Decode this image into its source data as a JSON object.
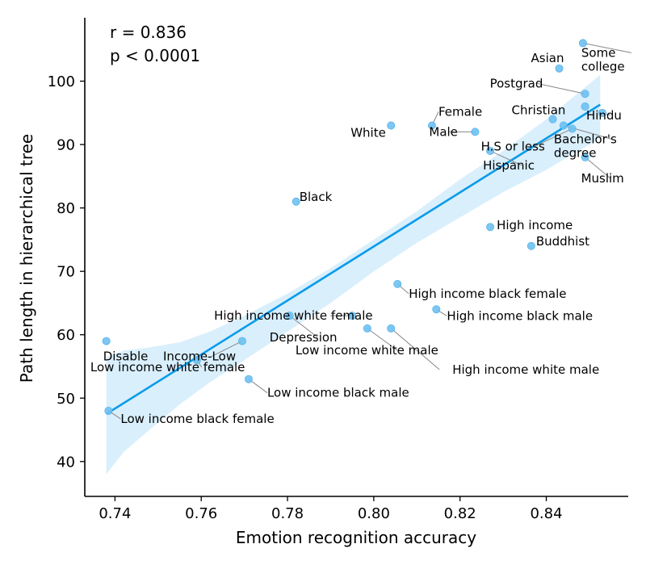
{
  "chart_data": {
    "type": "scatter",
    "xlabel": "Emotion recognition accuracy",
    "ylabel": "Path length in hierarchical tree",
    "xlim": [
      0.733,
      0.859
    ],
    "ylim": [
      34.5,
      110
    ],
    "xticks": [
      0.74,
      0.76,
      0.78,
      0.8,
      0.82,
      0.84
    ],
    "xtick_labels": [
      "0.74",
      "0.76",
      "0.78",
      "0.80",
      "0.82",
      "0.84"
    ],
    "yticks": [
      40,
      50,
      60,
      70,
      80,
      90,
      100
    ],
    "ytick_labels": [
      "40",
      "50",
      "60",
      "70",
      "80",
      "90",
      "100"
    ],
    "annotations": {
      "r": "r = 0.836",
      "p": "p < 0.0001"
    },
    "colors": {
      "points": "#6ec1f2",
      "line": "#0a9bea",
      "band": "#d9effc"
    },
    "regression": {
      "x0": 0.738,
      "y0": 47.5,
      "x1": 0.8525,
      "y1": 96.3
    },
    "ci_band": [
      [
        0.738,
        38.0,
        56.5
      ],
      [
        0.742,
        41.5,
        57.5
      ],
      [
        0.748,
        45.0,
        58.0
      ],
      [
        0.755,
        49.0,
        58.8
      ],
      [
        0.762,
        52.5,
        60.5
      ],
      [
        0.77,
        56.0,
        63.0
      ],
      [
        0.78,
        60.5,
        66.5
      ],
      [
        0.79,
        65.0,
        70.5
      ],
      [
        0.8,
        70.0,
        75.0
      ],
      [
        0.81,
        74.5,
        79.5
      ],
      [
        0.82,
        78.5,
        84.5
      ],
      [
        0.83,
        82.5,
        89.0
      ],
      [
        0.84,
        86.0,
        94.0
      ],
      [
        0.8525,
        91.0,
        101.0
      ]
    ],
    "points": [
      {
        "label": "Asian",
        "x": 0.843,
        "y": 102.0
      },
      {
        "label": "Some\ncollege",
        "x": 0.8485,
        "y": 106.0
      },
      {
        "label": "Postgrad",
        "x": 0.849,
        "y": 98.0
      },
      {
        "label": "Christian",
        "x": 0.8415,
        "y": 94.0
      },
      {
        "label": "Hindu",
        "x": 0.853,
        "y": 95.0
      },
      {
        "label": "Bachelor's\ndegree",
        "x": 0.844,
        "y": 93.0
      },
      {
        "label": "",
        "x": 0.849,
        "y": 96.0
      },
      {
        "label": "Muslim",
        "x": 0.849,
        "y": 88.0
      },
      {
        "label": "Female",
        "x": 0.8135,
        "y": 93.0
      },
      {
        "label": "Male",
        "x": 0.8235,
        "y": 92.0
      },
      {
        "label": "H.S or less",
        "x": 0.846,
        "y": 92.5
      },
      {
        "label": "Hispanic",
        "x": 0.827,
        "y": 89.0
      },
      {
        "label": "White",
        "x": 0.804,
        "y": 93.0
      },
      {
        "label": "Black",
        "x": 0.782,
        "y": 81.0
      },
      {
        "label": "High income",
        "x": 0.827,
        "y": 77.0
      },
      {
        "label": "Buddhist",
        "x": 0.8365,
        "y": 74.0
      },
      {
        "label": "High income black female",
        "x": 0.8055,
        "y": 68.0
      },
      {
        "label": "High income black male",
        "x": 0.8145,
        "y": 64.0
      },
      {
        "label": "High income white female",
        "x": 0.795,
        "y": 63.0
      },
      {
        "label": "Depression",
        "x": 0.7805,
        "y": 63.0
      },
      {
        "label": "Low income white male",
        "x": 0.7985,
        "y": 61.0
      },
      {
        "label": "High income white male",
        "x": 0.804,
        "y": 61.0
      },
      {
        "label": "Disable",
        "x": 0.738,
        "y": 59.0
      },
      {
        "label": "Income-Low",
        "x": 0.7695,
        "y": 59.0
      },
      {
        "label": "Low income white female",
        "x": 0.759,
        "y": 56.0
      },
      {
        "label": "Low income black male",
        "x": 0.771,
        "y": 53.0
      },
      {
        "label": "Low income black female",
        "x": 0.7385,
        "y": 48.0
      }
    ]
  }
}
